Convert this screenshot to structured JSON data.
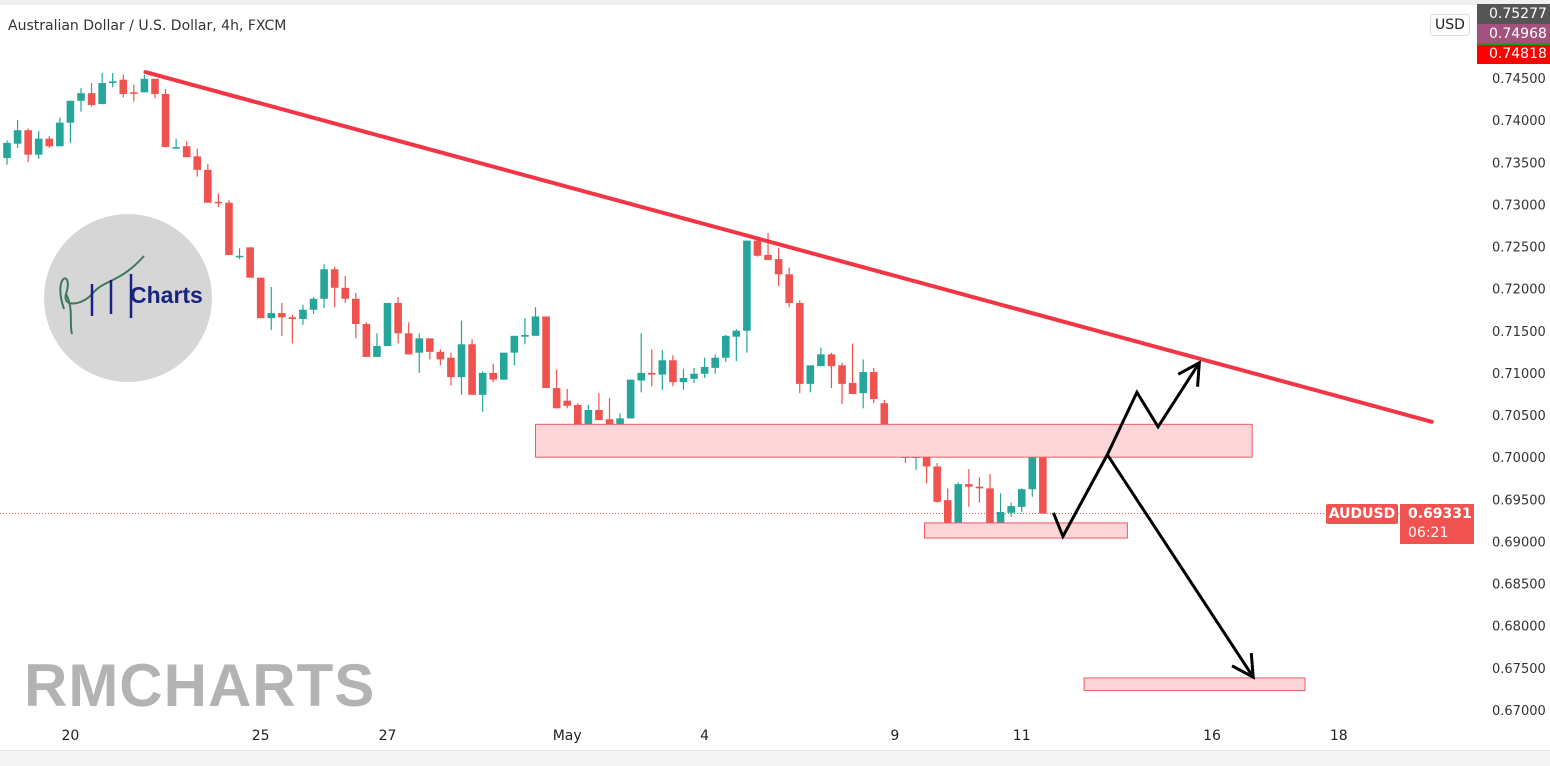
{
  "header": {
    "title": "Australian Dollar / U.S. Dollar, 4h, FXCM"
  },
  "watermark": "RMCHARTS",
  "logo": {
    "text": "Charts",
    "monogram": "RM"
  },
  "price_axis": {
    "currency": "USD",
    "top_labels": [
      {
        "value": "0.75277",
        "color": "#555555"
      },
      {
        "value": "0.74968",
        "color": "#a3527d"
      },
      {
        "value": "0.74818",
        "color": "#ff0000"
      }
    ],
    "current": {
      "symbol": "AUDUSD",
      "price": "0.69331",
      "countdown": "06:21",
      "color": "#f05350"
    }
  },
  "colors": {
    "up": "#26a69a",
    "down": "#ef5350",
    "trendline": "#f23645",
    "zone_fill": "#fbd5d8",
    "zone_border": "#f05a64",
    "arrow": "#000000"
  },
  "chart_data": {
    "type": "candlestick",
    "symbol": "AUDUSD",
    "timeframe": "4h",
    "ylim": [
      0.6685,
      0.753
    ],
    "y_ticks": [
      "0.74500",
      "0.74000",
      "0.73500",
      "0.73000",
      "0.72500",
      "0.72000",
      "0.71500",
      "0.71000",
      "0.70500",
      "0.70000",
      "0.69500",
      "0.69000",
      "0.68500",
      "0.68000",
      "0.67500",
      "0.67000"
    ],
    "x_ticks": [
      {
        "label": "20",
        "index": 6
      },
      {
        "label": "25",
        "index": 24
      },
      {
        "label": "27",
        "index": 36
      },
      {
        "label": "May",
        "index": 53
      },
      {
        "label": "4",
        "index": 66
      },
      {
        "label": "9",
        "index": 84
      },
      {
        "label": "11",
        "index": 96
      },
      {
        "label": "16",
        "index": 114
      },
      {
        "label": "18",
        "index": 126
      }
    ],
    "ohlc": [
      [
        0.7355,
        0.7376,
        0.7347,
        0.7373
      ],
      [
        0.7372,
        0.74,
        0.7367,
        0.7388
      ],
      [
        0.7388,
        0.739,
        0.735,
        0.7359
      ],
      [
        0.7359,
        0.7387,
        0.7354,
        0.7378
      ],
      [
        0.7378,
        0.7381,
        0.7367,
        0.7369
      ],
      [
        0.7369,
        0.7403,
        0.7369,
        0.7397
      ],
      [
        0.7397,
        0.7423,
        0.7373,
        0.7423
      ],
      [
        0.7423,
        0.7438,
        0.741,
        0.7432
      ],
      [
        0.7432,
        0.7444,
        0.7416,
        0.7418
      ],
      [
        0.7419,
        0.7456,
        0.7419,
        0.7444
      ],
      [
        0.7444,
        0.7456,
        0.7439,
        0.7446
      ],
      [
        0.7448,
        0.7454,
        0.7427,
        0.7431
      ],
      [
        0.7433,
        0.7442,
        0.7422,
        0.7432
      ],
      [
        0.7433,
        0.7454,
        0.7433,
        0.7449
      ],
      [
        0.7449,
        0.7449,
        0.7426,
        0.7431
      ],
      [
        0.7431,
        0.7437,
        0.7368,
        0.7368
      ],
      [
        0.7367,
        0.7378,
        0.7366,
        0.7368
      ],
      [
        0.7369,
        0.7375,
        0.7356,
        0.7356
      ],
      [
        0.7357,
        0.7366,
        0.7333,
        0.7341
      ],
      [
        0.7341,
        0.7348,
        0.7302,
        0.7302
      ],
      [
        0.7303,
        0.7313,
        0.7297,
        0.7302
      ],
      [
        0.7302,
        0.7305,
        0.724,
        0.724
      ],
      [
        0.7238,
        0.7248,
        0.7235,
        0.7239
      ],
      [
        0.7249,
        0.7249,
        0.7213,
        0.7213
      ],
      [
        0.7213,
        0.7213,
        0.7165,
        0.7165
      ],
      [
        0.7165,
        0.7202,
        0.7151,
        0.7171
      ],
      [
        0.7171,
        0.7183,
        0.7144,
        0.7166
      ],
      [
        0.7166,
        0.7169,
        0.7135,
        0.7164
      ],
      [
        0.7164,
        0.7181,
        0.7157,
        0.7175
      ],
      [
        0.7175,
        0.719,
        0.717,
        0.7188
      ],
      [
        0.7188,
        0.7229,
        0.7177,
        0.7223
      ],
      [
        0.7223,
        0.7226,
        0.7178,
        0.7201
      ],
      [
        0.7201,
        0.7215,
        0.7183,
        0.7188
      ],
      [
        0.7188,
        0.7195,
        0.7141,
        0.7158
      ],
      [
        0.7158,
        0.716,
        0.7119,
        0.7119
      ],
      [
        0.7119,
        0.7147,
        0.7119,
        0.7132
      ],
      [
        0.7132,
        0.7183,
        0.7132,
        0.7183
      ],
      [
        0.7183,
        0.719,
        0.7135,
        0.7147
      ],
      [
        0.7147,
        0.716,
        0.7122,
        0.7122
      ],
      [
        0.7124,
        0.7147,
        0.71,
        0.7141
      ],
      [
        0.7141,
        0.7141,
        0.7116,
        0.7125
      ],
      [
        0.7125,
        0.7128,
        0.7109,
        0.7116
      ],
      [
        0.7118,
        0.7124,
        0.7085,
        0.7095
      ],
      [
        0.7095,
        0.7162,
        0.7074,
        0.7134
      ],
      [
        0.7134,
        0.714,
        0.7074,
        0.7074
      ],
      [
        0.7074,
        0.7102,
        0.7054,
        0.71
      ],
      [
        0.71,
        0.7111,
        0.7089,
        0.7092
      ],
      [
        0.7092,
        0.7124,
        0.7092,
        0.7124
      ],
      [
        0.7124,
        0.7144,
        0.7109,
        0.7144
      ],
      [
        0.7143,
        0.7165,
        0.7134,
        0.7145
      ],
      [
        0.7144,
        0.7178,
        0.7144,
        0.7167
      ],
      [
        0.7167,
        0.7167,
        0.7082,
        0.7082
      ],
      [
        0.7082,
        0.7104,
        0.7058,
        0.7058
      ],
      [
        0.7067,
        0.7081,
        0.7058,
        0.7061
      ],
      [
        0.7062,
        0.7064,
        0.7031,
        0.7037
      ],
      [
        0.7037,
        0.7062,
        0.7033,
        0.7056
      ],
      [
        0.7056,
        0.7076,
        0.7044,
        0.7044
      ],
      [
        0.7045,
        0.707,
        0.7032,
        0.7039
      ],
      [
        0.7039,
        0.7052,
        0.703,
        0.7046
      ],
      [
        0.7046,
        0.7092,
        0.7046,
        0.7092
      ],
      [
        0.7091,
        0.7147,
        0.7077,
        0.71
      ],
      [
        0.71,
        0.7128,
        0.7084,
        0.7098
      ],
      [
        0.7098,
        0.7127,
        0.708,
        0.7115
      ],
      [
        0.7115,
        0.7121,
        0.7084,
        0.7089
      ],
      [
        0.7089,
        0.7105,
        0.708,
        0.7094
      ],
      [
        0.7093,
        0.7106,
        0.7088,
        0.7099
      ],
      [
        0.7099,
        0.7118,
        0.7094,
        0.7107
      ],
      [
        0.7106,
        0.7122,
        0.7099,
        0.7118
      ],
      [
        0.7118,
        0.7145,
        0.7113,
        0.7144
      ],
      [
        0.7143,
        0.7152,
        0.7114,
        0.715
      ],
      [
        0.715,
        0.7257,
        0.7124,
        0.7257
      ],
      [
        0.7257,
        0.7257,
        0.7238,
        0.7239
      ],
      [
        0.724,
        0.7266,
        0.7234,
        0.7234
      ],
      [
        0.7235,
        0.7248,
        0.7203,
        0.7217
      ],
      [
        0.7217,
        0.7225,
        0.7178,
        0.7183
      ],
      [
        0.7183,
        0.7186,
        0.7076,
        0.7087
      ],
      [
        0.7087,
        0.7109,
        0.7077,
        0.7109
      ],
      [
        0.7108,
        0.713,
        0.7108,
        0.7122
      ],
      [
        0.7122,
        0.7124,
        0.7082,
        0.7108
      ],
      [
        0.7109,
        0.7112,
        0.7063,
        0.7087
      ],
      [
        0.7088,
        0.7135,
        0.7075,
        0.7075
      ],
      [
        0.7076,
        0.7116,
        0.7058,
        0.7101
      ],
      [
        0.7101,
        0.7106,
        0.7064,
        0.7069
      ],
      [
        0.7064,
        0.7068,
        0.7012,
        0.7012
      ],
      [
        0.7012,
        0.7017,
        0.7001,
        0.7007
      ],
      [
        0.7007,
        0.7017,
        0.6993,
        0.6999
      ],
      [
        0.6999,
        0.7029,
        0.6985,
        0.702
      ],
      [
        0.702,
        0.702,
        0.6969,
        0.6989
      ],
      [
        0.6989,
        0.6993,
        0.6946,
        0.6947
      ],
      [
        0.6949,
        0.6963,
        0.6916,
        0.6919
      ],
      [
        0.692,
        0.697,
        0.6911,
        0.6968
      ],
      [
        0.6968,
        0.6986,
        0.6941,
        0.6965
      ],
      [
        0.6965,
        0.6976,
        0.6946,
        0.6963
      ],
      [
        0.6963,
        0.698,
        0.6917,
        0.6919
      ],
      [
        0.6922,
        0.6957,
        0.6913,
        0.6935
      ],
      [
        0.6934,
        0.6946,
        0.6929,
        0.6942
      ],
      [
        0.6941,
        0.6963,
        0.6935,
        0.6962
      ],
      [
        0.6962,
        0.7006,
        0.6953,
        0.7004
      ],
      [
        0.7004,
        0.702,
        0.6933,
        0.6933
      ]
    ],
    "last_price": 0.69331,
    "drawings": {
      "trendline": {
        "from": [
          13.1,
          0.7457
        ],
        "to": [
          134.8,
          0.7042
        ]
      },
      "zones": [
        {
          "from": [
            50.0,
            0.7039
          ],
          "to": [
            117.8,
            0.7
          ]
        },
        {
          "from": [
            86.8,
            0.6922
          ],
          "to": [
            106.0,
            0.6904
          ]
        },
        {
          "from": [
            101.9,
            0.6738
          ],
          "to": [
            122.8,
            0.6723
          ]
        }
      ],
      "arrows": [
        {
          "points": [
            [
              99.0,
              0.6934
            ],
            [
              99.9,
              0.6906
            ],
            [
              104.1,
              0.7003
            ],
            [
              106.9,
              0.7077
            ],
            [
              108.9,
              0.7036
            ],
            [
              112.8,
              0.7112
            ]
          ]
        },
        {
          "points": [
            [
              104.1,
              0.7003
            ],
            [
              117.9,
              0.6739
            ]
          ]
        }
      ]
    }
  }
}
